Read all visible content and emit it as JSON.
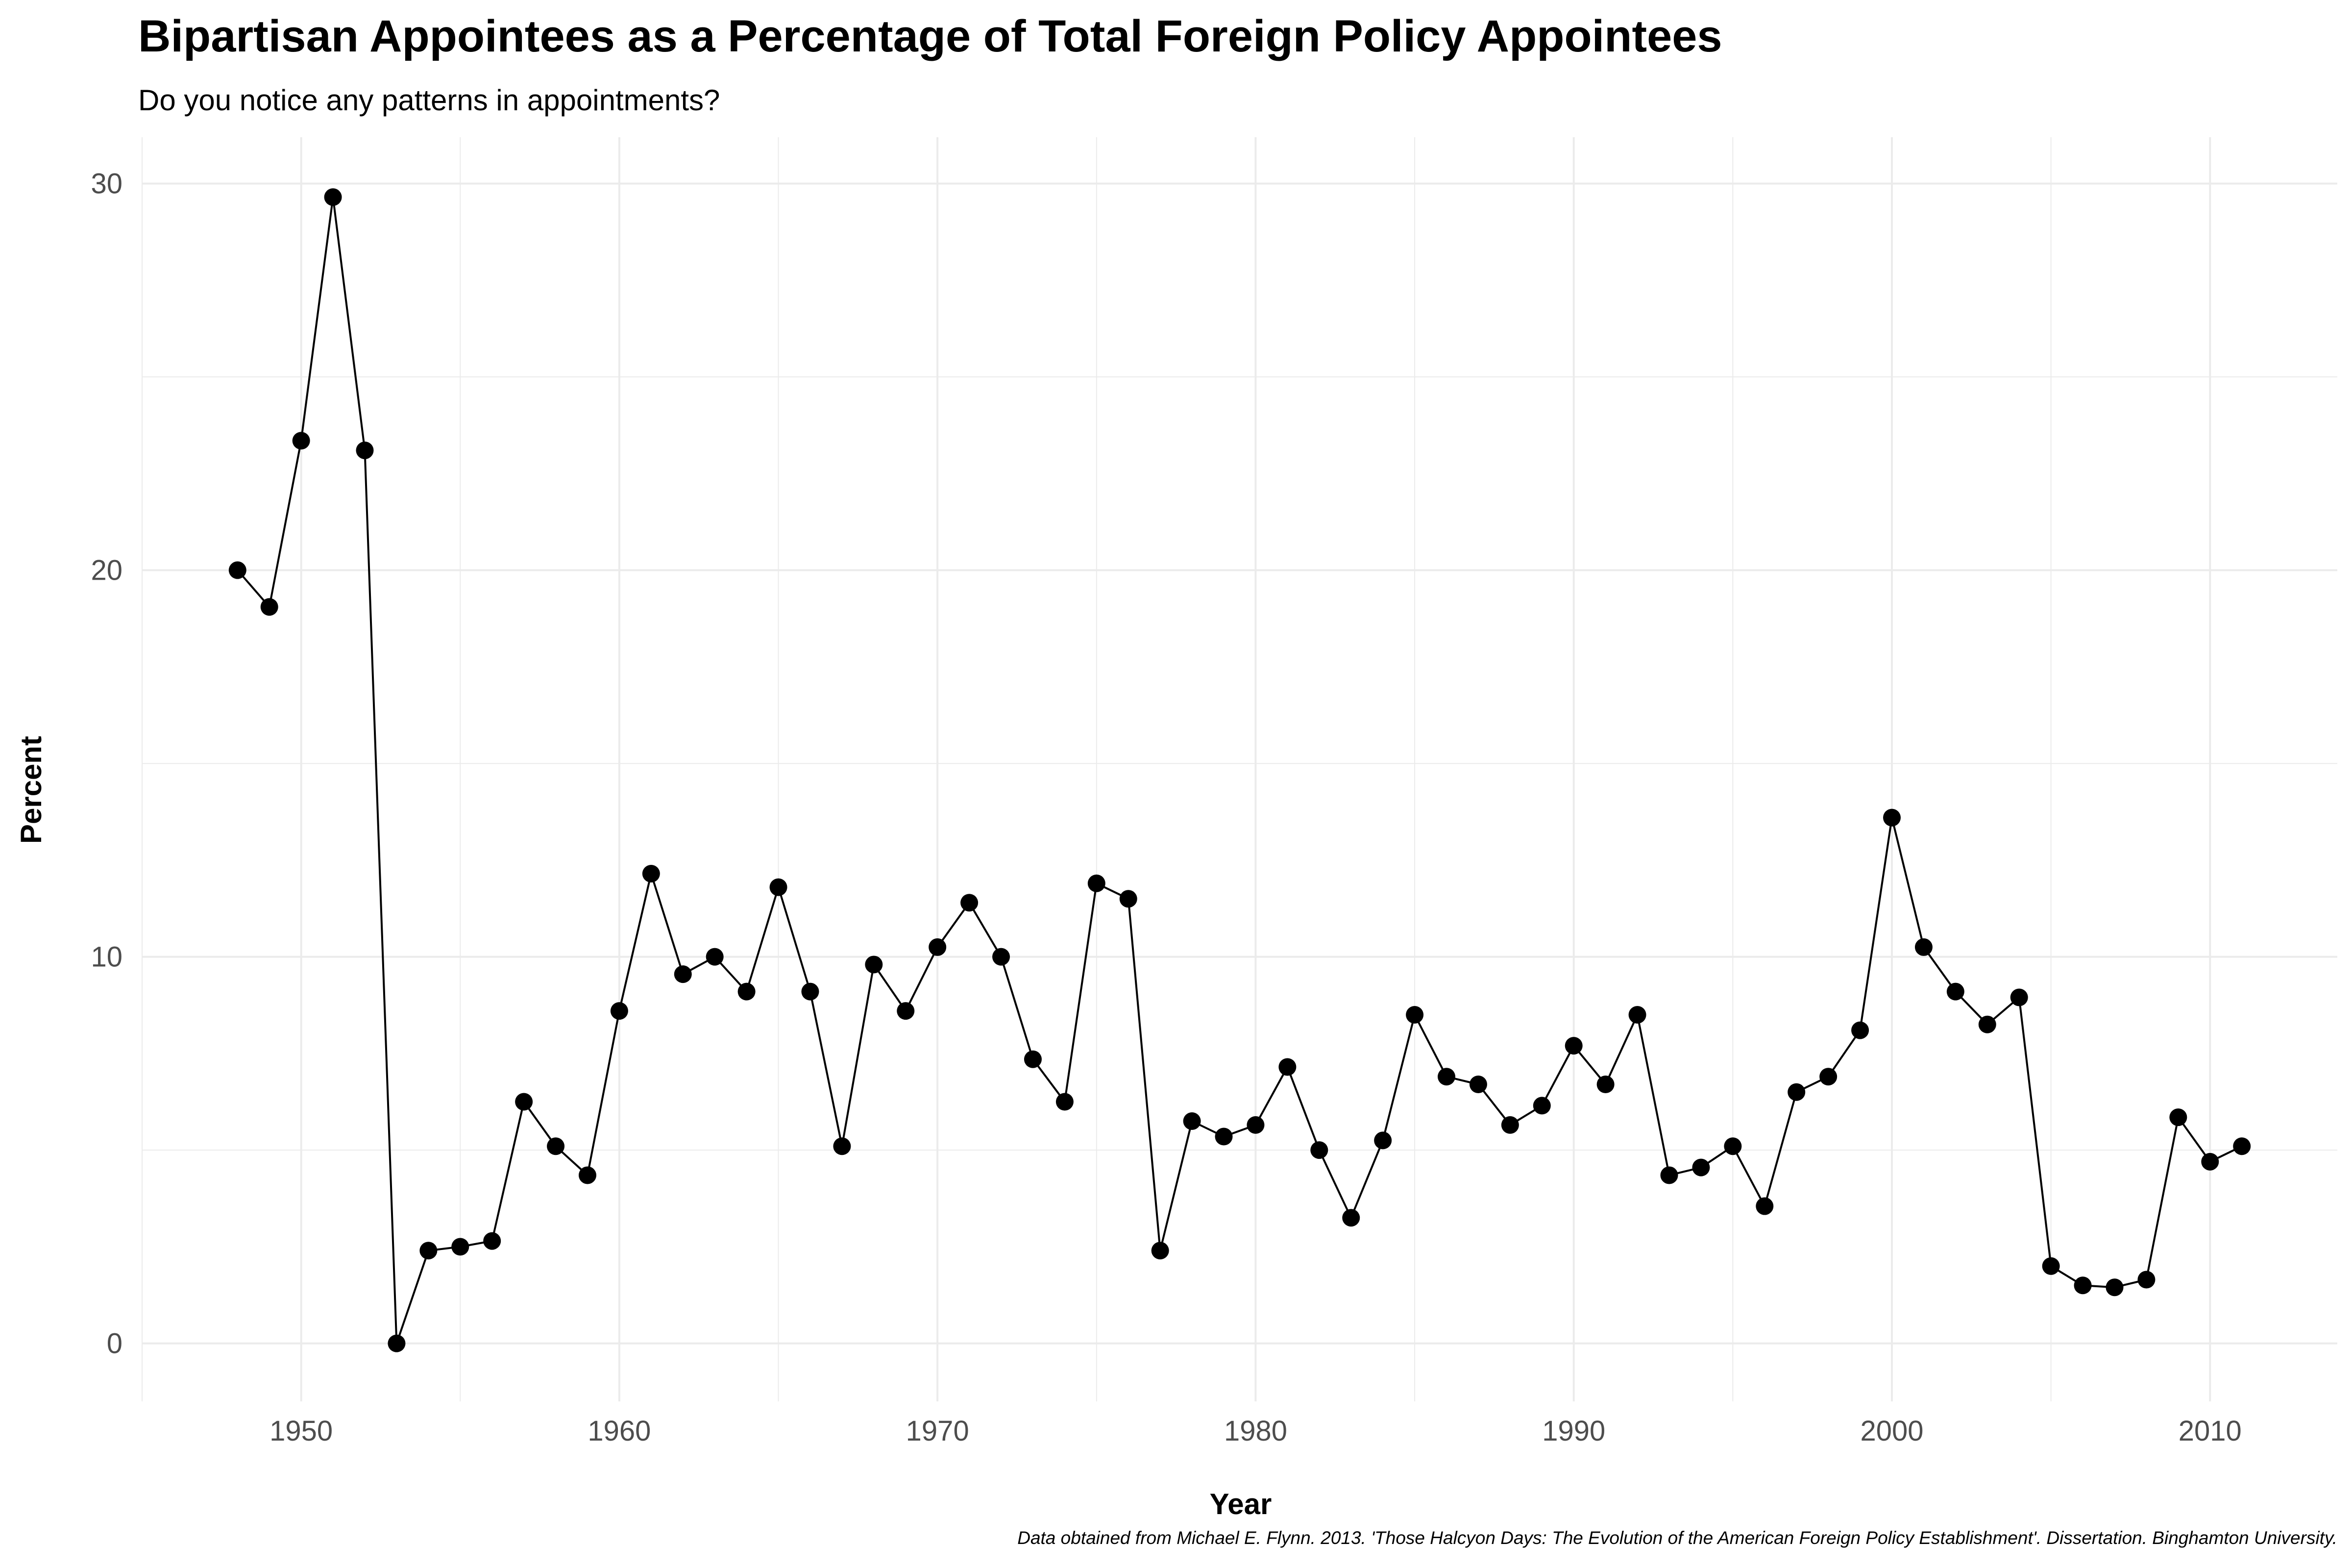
{
  "chart_data": {
    "type": "line",
    "title": "Bipartisan Appointees as a Percentage of Total Foreign Policy Appointees",
    "subtitle": "Do you notice any patterns in appointments?",
    "caption": "Data obtained from Michael E. Flynn. 2013. 'Those Halcyon Days: The Evolution of the American Foreign Policy Establishment'. Dissertation. Binghamton University.",
    "xlabel": "Year",
    "ylabel": "Percent",
    "xlim": [
      1945,
      2014
    ],
    "ylim": [
      -1.5,
      31.2
    ],
    "x_major_ticks": [
      1950,
      1960,
      1970,
      1980,
      1990,
      2000,
      2010
    ],
    "x_tick_labels": [
      "1950",
      "1960",
      "1970",
      "1980",
      "1990",
      "2000",
      "2010"
    ],
    "x_minor_ticks": [
      1945,
      1955,
      1965,
      1975,
      1985,
      1995,
      2005
    ],
    "y_major_ticks": [
      0,
      10,
      20,
      30
    ],
    "y_tick_labels": [
      "0",
      "10",
      "20",
      "30"
    ],
    "y_minor_ticks": [
      5,
      15,
      25
    ],
    "grid": true,
    "legend": "none",
    "line_color": "#000000",
    "point_color": "#000000",
    "grid_color": "#ebebeb",
    "series": [
      {
        "x": [
          1948,
          1949,
          1950,
          1951,
          1952,
          1953,
          1954,
          1955,
          1956,
          1957,
          1958,
          1959,
          1960,
          1961,
          1962,
          1963,
          1964,
          1965,
          1966,
          1967,
          1968,
          1969,
          1970,
          1971,
          1972,
          1973,
          1974,
          1975,
          1976,
          1977,
          1978,
          1979,
          1980,
          1981,
          1982,
          1983,
          1984,
          1985,
          1986,
          1987,
          1988,
          1989,
          1990,
          1991,
          1992,
          1993,
          1994,
          1995,
          1996,
          1997,
          1998,
          1999,
          2000,
          2001,
          2002,
          2003,
          2004,
          2005,
          2006,
          2007,
          2008,
          2009,
          2010,
          2011
        ],
        "values": [
          20.0,
          19.05,
          23.35,
          29.65,
          23.1,
          0.0,
          2.4,
          2.5,
          2.65,
          6.25,
          5.1,
          4.35,
          8.6,
          12.15,
          9.55,
          10.0,
          9.1,
          11.8,
          9.1,
          5.1,
          9.8,
          8.6,
          10.25,
          11.4,
          10.0,
          7.35,
          6.25,
          11.9,
          11.5,
          2.4,
          5.75,
          5.35,
          5.65,
          7.15,
          5.0,
          3.25,
          5.25,
          8.5,
          6.9,
          6.7,
          5.65,
          6.15,
          7.7,
          6.7,
          8.5,
          4.35,
          4.55,
          5.1,
          3.55,
          6.5,
          6.9,
          8.1,
          13.6,
          10.25,
          9.1,
          8.25,
          8.95,
          2.0,
          1.5,
          1.45,
          1.65,
          5.85,
          4.7,
          5.1
        ]
      }
    ]
  }
}
